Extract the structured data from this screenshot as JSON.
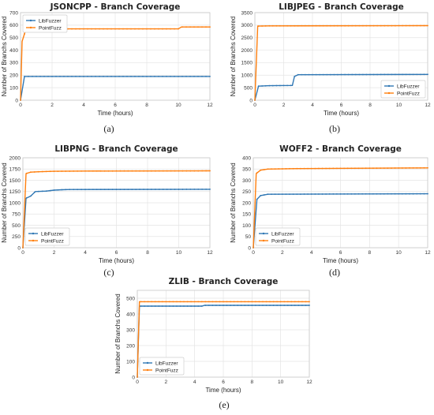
{
  "figure": {
    "captions": [
      "(a)",
      "(b)",
      "(c)",
      "(d)",
      "(e)"
    ]
  },
  "colors": {
    "LibFuzzer": "#2f77b4",
    "PointFuzz": "#ff7f0e",
    "grid": "#e4e4e4",
    "frame": "#c8c8c8"
  },
  "chart_data": [
    {
      "type": "line",
      "title": "JSONCPP - Branch Coverage",
      "xlabel": "Time (hours)",
      "ylabel": "Number of Branchs Covered",
      "xlim": [
        0,
        12
      ],
      "ylim": [
        0,
        700
      ],
      "xticks": [
        0,
        2,
        4,
        6,
        8,
        10,
        12
      ],
      "yticks": [
        0,
        100,
        200,
        300,
        400,
        500,
        600,
        700
      ],
      "grid": true,
      "legend": "top-left",
      "series": [
        {
          "name": "LibFuzzer",
          "x": [
            0,
            0.25,
            12
          ],
          "y": [
            0,
            190,
            190
          ]
        },
        {
          "name": "PointFuzz",
          "x": [
            0,
            0.1,
            0.3,
            1,
            3,
            10,
            10.2,
            12
          ],
          "y": [
            0,
            470,
            550,
            565,
            570,
            570,
            585,
            585
          ]
        }
      ]
    },
    {
      "type": "line",
      "title": "LIBJPEG - Branch Coverage",
      "xlabel": "Time (hours)",
      "ylabel": "Number of Branchs Covered",
      "xlim": [
        0,
        12
      ],
      "ylim": [
        0,
        3500
      ],
      "xticks": [
        0,
        2,
        4,
        6,
        8,
        10,
        12
      ],
      "yticks": [
        0,
        500,
        1000,
        1500,
        2000,
        2500,
        3000,
        3500
      ],
      "grid": true,
      "legend": "bottom-right",
      "series": [
        {
          "name": "LibFuzzer",
          "x": [
            0,
            0.25,
            1,
            2.6,
            2.75,
            3,
            12
          ],
          "y": [
            0,
            560,
            580,
            590,
            950,
            1020,
            1030
          ]
        },
        {
          "name": "PointFuzz",
          "x": [
            0,
            0.2,
            1,
            12
          ],
          "y": [
            0,
            2960,
            2970,
            2980
          ]
        }
      ]
    },
    {
      "type": "line",
      "title": "LIBPNG - Branch Coverage",
      "xlabel": "Time (hours)",
      "ylabel": "Number of Branchs Covered",
      "xlim": [
        0,
        12
      ],
      "ylim": [
        0,
        2000
      ],
      "xticks": [
        0,
        2,
        4,
        6,
        8,
        10,
        12
      ],
      "yticks": [
        0,
        250,
        500,
        750,
        1000,
        1250,
        1500,
        1750,
        2000
      ],
      "grid": true,
      "legend": "bottom-left",
      "series": [
        {
          "name": "LibFuzzer",
          "x": [
            0,
            0.2,
            0.5,
            0.8,
            1.5,
            2,
            2.5,
            3,
            12
          ],
          "y": [
            0,
            1100,
            1150,
            1250,
            1260,
            1280,
            1290,
            1295,
            1300
          ]
        },
        {
          "name": "PointFuzz",
          "x": [
            0,
            0.2,
            0.5,
            1,
            2,
            4,
            12
          ],
          "y": [
            0,
            1650,
            1680,
            1690,
            1700,
            1705,
            1710
          ]
        }
      ]
    },
    {
      "type": "line",
      "title": "WOFF2 - Branch Coverage",
      "xlabel": "Time (hours)",
      "ylabel": "Number of Branchs Covered",
      "xlim": [
        0,
        12
      ],
      "ylim": [
        0,
        400
      ],
      "xticks": [
        0,
        2,
        4,
        6,
        8,
        10,
        12
      ],
      "yticks": [
        0,
        50,
        100,
        150,
        200,
        250,
        300,
        350,
        400
      ],
      "grid": true,
      "legend": "bottom-left",
      "series": [
        {
          "name": "LibFuzzer",
          "x": [
            0,
            0.25,
            0.5,
            1,
            12
          ],
          "y": [
            0,
            215,
            232,
            238,
            240
          ]
        },
        {
          "name": "PointFuzz",
          "x": [
            0,
            0.2,
            0.5,
            1,
            3,
            12
          ],
          "y": [
            0,
            330,
            345,
            350,
            352,
            355
          ]
        }
      ]
    },
    {
      "type": "line",
      "title": "ZLIB - Branch Coverage",
      "xlabel": "Time (hours)",
      "ylabel": "Number of Branchs Covered",
      "xlim": [
        0,
        12
      ],
      "ylim": [
        0,
        550
      ],
      "xticks": [
        0,
        2,
        4,
        6,
        8,
        10,
        12
      ],
      "yticks": [
        0,
        100,
        200,
        300,
        400,
        500
      ],
      "grid": true,
      "legend": "bottom-left",
      "series": [
        {
          "name": "LibFuzzer",
          "x": [
            0,
            0.15,
            4.5,
            4.7,
            12
          ],
          "y": [
            0,
            450,
            450,
            455,
            455
          ]
        },
        {
          "name": "PointFuzz",
          "x": [
            0,
            0.15,
            12
          ],
          "y": [
            0,
            478,
            478
          ]
        }
      ]
    }
  ]
}
